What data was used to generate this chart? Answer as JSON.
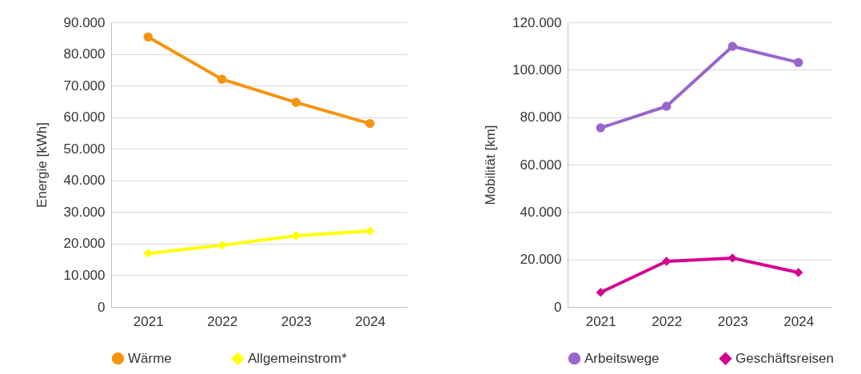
{
  "chart_data": [
    {
      "type": "line",
      "ylabel": "Energie [kWh]",
      "categories": [
        "2021",
        "2022",
        "2023",
        "2024"
      ],
      "series": [
        {
          "name": "Wärme",
          "color": "#f7940f",
          "marker": "circle",
          "values": [
            85400,
            72000,
            64700,
            58000
          ]
        },
        {
          "name": "Allgemeinstrom*",
          "color": "#ffff00",
          "marker": "diamond",
          "values": [
            16900,
            19500,
            22500,
            24000
          ]
        }
      ],
      "ylim": [
        0,
        90000
      ],
      "yticks": [
        {
          "value": 0,
          "label": "0"
        },
        {
          "value": 10000,
          "label": "10.000"
        },
        {
          "value": 20000,
          "label": "20.000"
        },
        {
          "value": 30000,
          "label": "30.000"
        },
        {
          "value": 40000,
          "label": "40.000"
        },
        {
          "value": 50000,
          "label": "50.000"
        },
        {
          "value": 60000,
          "label": "60.000"
        },
        {
          "value": 70000,
          "label": "70.000"
        },
        {
          "value": 80000,
          "label": "80.000"
        },
        {
          "value": 90000,
          "label": "90.000"
        }
      ],
      "grid": "y",
      "legend": "bottom",
      "line_style": "solid"
    },
    {
      "type": "line",
      "ylabel": "Mobilität [km]",
      "categories": [
        "2021",
        "2022",
        "2023",
        "2024"
      ],
      "series": [
        {
          "name": "Arbeitswege",
          "color": "#9966cc",
          "marker": "circle",
          "values": [
            75500,
            84600,
            109900,
            103100
          ]
        },
        {
          "name": "Geschäftsreisen",
          "color": "#d6008f",
          "marker": "diamond",
          "values": [
            6100,
            19200,
            20600,
            14500
          ]
        }
      ],
      "ylim": [
        0,
        120000
      ],
      "yticks": [
        {
          "value": 0,
          "label": "0"
        },
        {
          "value": 20000,
          "label": "20.000"
        },
        {
          "value": 40000,
          "label": "40.000"
        },
        {
          "value": 60000,
          "label": "60.000"
        },
        {
          "value": 80000,
          "label": "80.000"
        },
        {
          "value": 100000,
          "label": "100.000"
        },
        {
          "value": 120000,
          "label": "120.000"
        }
      ],
      "grid": "y",
      "legend": "bottom",
      "line_style": "solid"
    }
  ]
}
